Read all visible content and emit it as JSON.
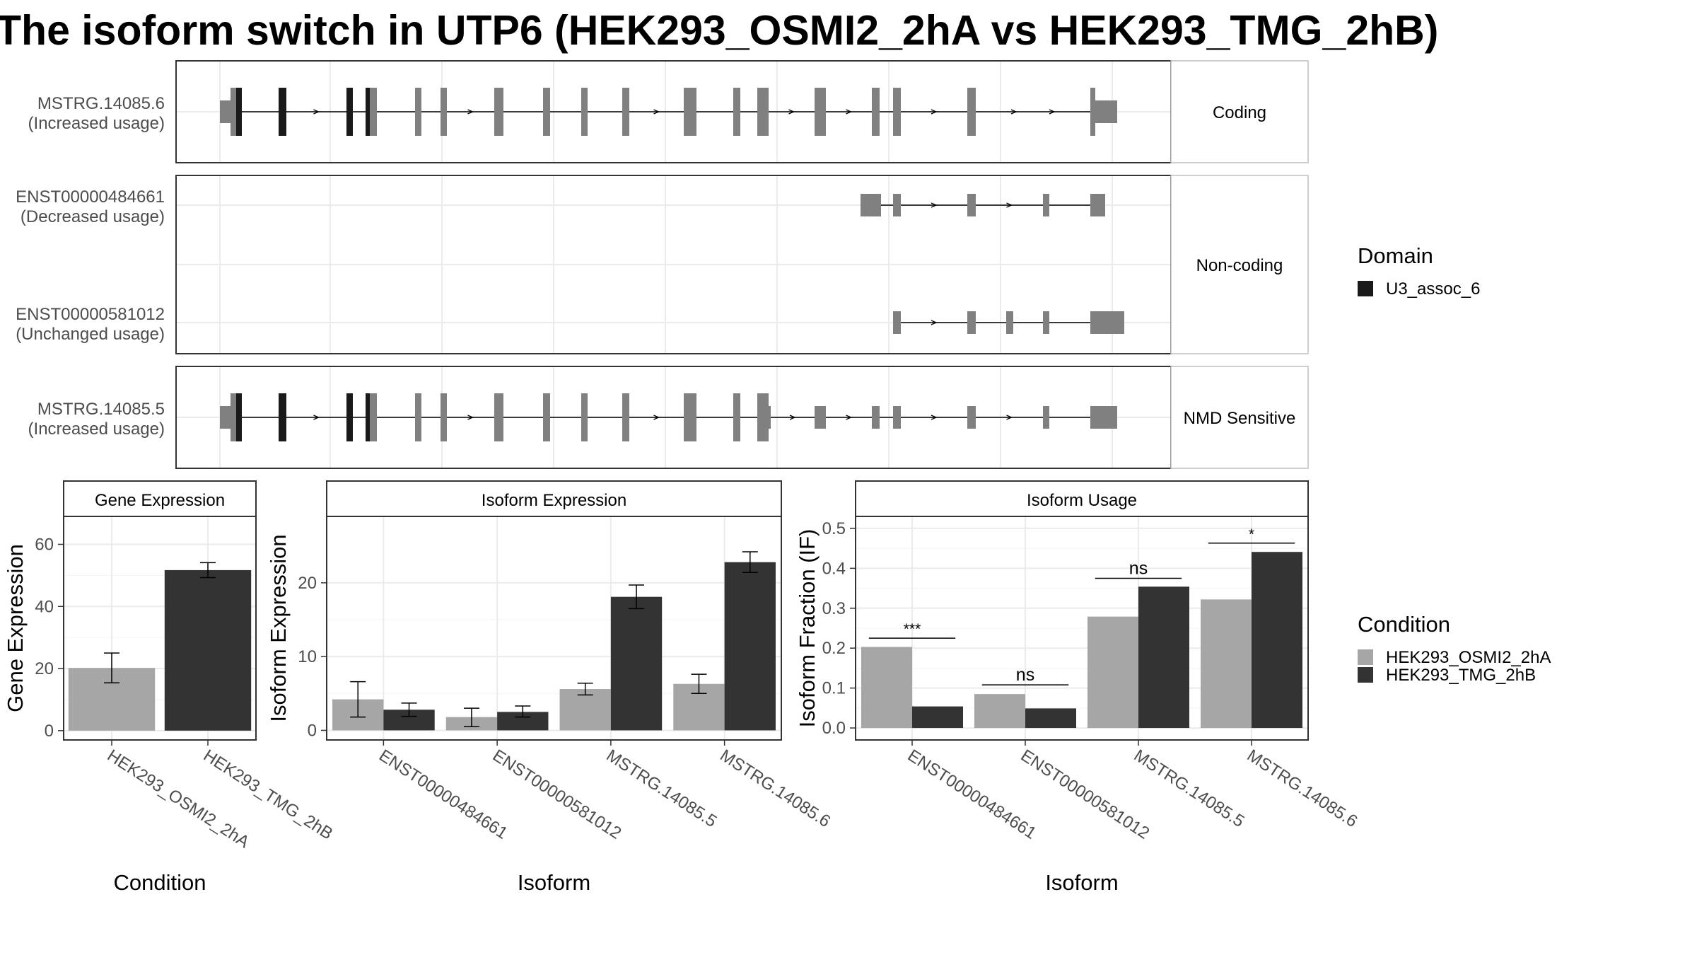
{
  "title": "The isoform switch in UTP6 (HEK293_OSMI2_2hA vs HEK293_TMG_2hB)",
  "colors": {
    "exon": "#808080",
    "domain": "#1a1a1a",
    "cond_a": "#a6a6a6",
    "cond_b": "#333333",
    "strip_bg": "#ffffff",
    "grid": "#ebebeb",
    "border": "#333333"
  },
  "transcripts": {
    "facets": [
      {
        "label": "Coding",
        "rows": [
          {
            "id": "MSTRG.14085.6",
            "usage": "(Increased usage)"
          }
        ]
      },
      {
        "label": "Non-coding",
        "rows": [
          {
            "id": "ENST00000484661",
            "usage": "(Decreased usage)"
          },
          {
            "id": "ENST00000581012",
            "usage": "(Unchanged usage)"
          }
        ]
      },
      {
        "label": "NMD Sensitive",
        "rows": [
          {
            "id": "MSTRG.14085.5",
            "usage": "(Increased usage)"
          }
        ]
      }
    ]
  },
  "legend_domain": {
    "title": "Domain",
    "items": [
      {
        "label": "U3_assoc_6"
      }
    ]
  },
  "legend_condition": {
    "title": "Condition",
    "items": [
      {
        "label": "HEK293_OSMI2_2hA"
      },
      {
        "label": "HEK293_TMG_2hB"
      }
    ]
  },
  "chart_data": [
    {
      "type": "bar",
      "title": "Gene Expression",
      "xlabel": "Condition",
      "ylabel": "Gene Expression",
      "categories": [
        "HEK293_OSMI2_2hA",
        "HEK293_TMG_2hB"
      ],
      "values": [
        20.2,
        51.7
      ],
      "error_low": [
        15.4,
        49.3
      ],
      "error_high": [
        25.0,
        54.1
      ],
      "ylim": [
        -3,
        69
      ],
      "yticks": [
        0,
        20,
        40,
        60
      ],
      "grid": true
    },
    {
      "type": "bar",
      "title": "Isoform Expression",
      "xlabel": "Isoform",
      "ylabel": "Isoform Expression",
      "categories": [
        "ENST00000484661",
        "ENST00000581012",
        "MSTRG.14085.5",
        "MSTRG.14085.6"
      ],
      "series": [
        {
          "name": "HEK293_OSMI2_2hA",
          "values": [
            4.2,
            1.8,
            5.6,
            6.3
          ],
          "error_low": [
            1.8,
            0.5,
            4.8,
            5.0
          ],
          "error_high": [
            6.6,
            3.0,
            6.4,
            7.6
          ]
        },
        {
          "name": "HEK293_TMG_2hB",
          "values": [
            2.8,
            2.5,
            18.1,
            22.8
          ],
          "error_low": [
            1.9,
            1.8,
            16.5,
            21.4
          ],
          "error_high": [
            3.7,
            3.3,
            19.7,
            24.2
          ]
        }
      ],
      "ylim": [
        -1.3,
        29
      ],
      "yticks": [
        0,
        10,
        20
      ],
      "grid": true
    },
    {
      "type": "bar",
      "title": "Isoform Usage",
      "xlabel": "Isoform",
      "ylabel": "Isoform Fraction (IF)",
      "categories": [
        "ENST00000484661",
        "ENST00000581012",
        "MSTRG.14085.5",
        "MSTRG.14085.6"
      ],
      "series": [
        {
          "name": "HEK293_OSMI2_2hA",
          "values": [
            0.203,
            0.085,
            0.279,
            0.322
          ]
        },
        {
          "name": "HEK293_TMG_2hB",
          "values": [
            0.054,
            0.049,
            0.354,
            0.441
          ]
        }
      ],
      "significance": [
        "***",
        "ns",
        "ns",
        "*"
      ],
      "significance_y": [
        0.225,
        0.108,
        0.375,
        0.463
      ],
      "ylim": [
        -0.03,
        0.53
      ],
      "yticks": [
        0.0,
        0.1,
        0.2,
        0.3,
        0.4,
        0.5
      ],
      "ytick_labels": [
        "0.0",
        "0.1",
        "0.2",
        "0.3",
        "0.4",
        "0.5"
      ],
      "grid": true
    }
  ]
}
